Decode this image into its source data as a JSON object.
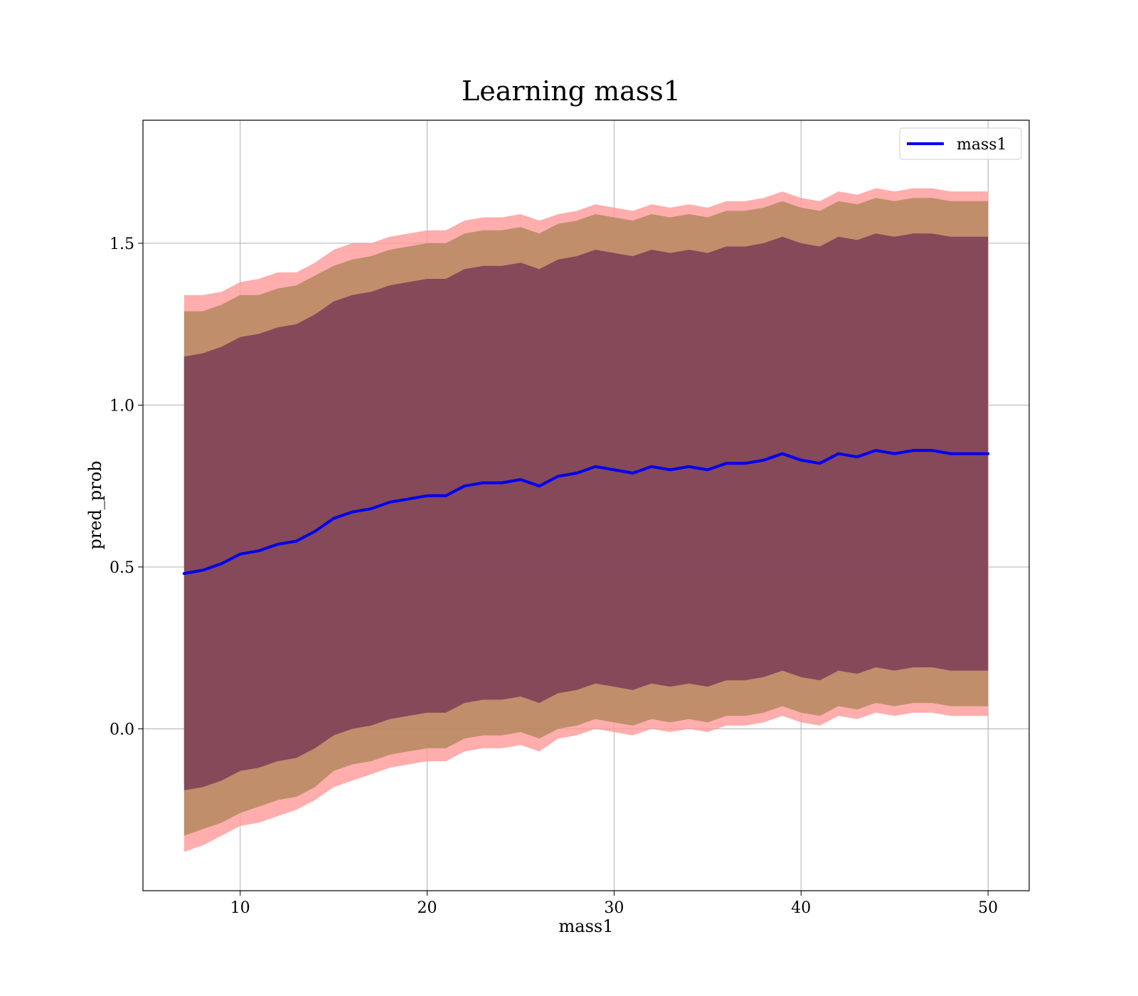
{
  "chart_data": {
    "type": "line",
    "title": "Learning mass1",
    "xlabel": "mass1",
    "ylabel": "pred_prob",
    "xlim": [
      4.8,
      52.2
    ],
    "ylim": [
      -0.5,
      1.88
    ],
    "xticks": [
      10,
      20,
      30,
      40,
      50
    ],
    "yticks": [
      0.0,
      0.5,
      1.0,
      1.5
    ],
    "xtick_labels": [
      "10",
      "20",
      "30",
      "40",
      "50"
    ],
    "ytick_labels": [
      "0.0",
      "0.5",
      "1.0",
      "1.5"
    ],
    "grid": true,
    "legend": {
      "placement": "top-right",
      "entries": [
        "mass1"
      ]
    },
    "colors": {
      "series": "#0000ee",
      "band_outer": "#ff9999",
      "band_middle": "#b5885f",
      "band_inner": "#7a3d57",
      "grid": "#b0b0b0"
    },
    "series": [
      {
        "name": "mass1",
        "x": [
          7,
          8,
          9,
          10,
          11,
          12,
          13,
          14,
          15,
          16,
          17,
          18,
          19,
          20,
          21,
          22,
          23,
          24,
          25,
          26,
          27,
          28,
          29,
          30,
          31,
          32,
          33,
          34,
          35,
          36,
          37,
          38,
          39,
          40,
          41,
          42,
          43,
          44,
          45,
          46,
          47,
          48,
          49,
          50
        ],
        "y": [
          0.48,
          0.49,
          0.51,
          0.54,
          0.55,
          0.57,
          0.58,
          0.61,
          0.65,
          0.67,
          0.68,
          0.7,
          0.71,
          0.72,
          0.72,
          0.75,
          0.76,
          0.76,
          0.77,
          0.75,
          0.78,
          0.79,
          0.81,
          0.8,
          0.79,
          0.81,
          0.8,
          0.81,
          0.8,
          0.82,
          0.82,
          0.83,
          0.85,
          0.83,
          0.82,
          0.85,
          0.84,
          0.86,
          0.85,
          0.86,
          0.86,
          0.85,
          0.85,
          0.85
        ]
      }
    ],
    "bands": [
      {
        "level": "outer",
        "sigma": 3,
        "half_width": [
          0.86,
          0.85,
          0.84,
          0.84,
          0.84,
          0.84,
          0.83,
          0.83,
          0.83,
          0.83,
          0.82,
          0.82,
          0.82,
          0.82,
          0.82,
          0.82,
          0.82,
          0.82,
          0.82,
          0.82,
          0.81,
          0.81,
          0.81,
          0.81,
          0.81,
          0.81,
          0.81,
          0.81,
          0.81,
          0.81,
          0.81,
          0.81,
          0.81,
          0.81,
          0.81,
          0.81,
          0.81,
          0.81,
          0.81,
          0.81,
          0.81,
          0.81,
          0.81,
          0.81
        ]
      },
      {
        "level": "middle",
        "sigma": 2.5,
        "half_width": [
          0.81,
          0.8,
          0.8,
          0.8,
          0.79,
          0.79,
          0.79,
          0.79,
          0.78,
          0.78,
          0.78,
          0.78,
          0.78,
          0.78,
          0.78,
          0.78,
          0.78,
          0.78,
          0.78,
          0.78,
          0.78,
          0.78,
          0.78,
          0.78,
          0.78,
          0.78,
          0.78,
          0.78,
          0.78,
          0.78,
          0.78,
          0.78,
          0.78,
          0.78,
          0.78,
          0.78,
          0.78,
          0.78,
          0.78,
          0.78,
          0.78,
          0.78,
          0.78,
          0.78
        ]
      },
      {
        "level": "inner",
        "sigma": 2,
        "half_width": [
          0.67,
          0.67,
          0.67,
          0.67,
          0.67,
          0.67,
          0.67,
          0.67,
          0.67,
          0.67,
          0.67,
          0.67,
          0.67,
          0.67,
          0.67,
          0.67,
          0.67,
          0.67,
          0.67,
          0.67,
          0.67,
          0.67,
          0.67,
          0.67,
          0.67,
          0.67,
          0.67,
          0.67,
          0.67,
          0.67,
          0.67,
          0.67,
          0.67,
          0.67,
          0.67,
          0.67,
          0.67,
          0.67,
          0.67,
          0.67,
          0.67,
          0.67,
          0.67,
          0.67
        ]
      }
    ]
  }
}
